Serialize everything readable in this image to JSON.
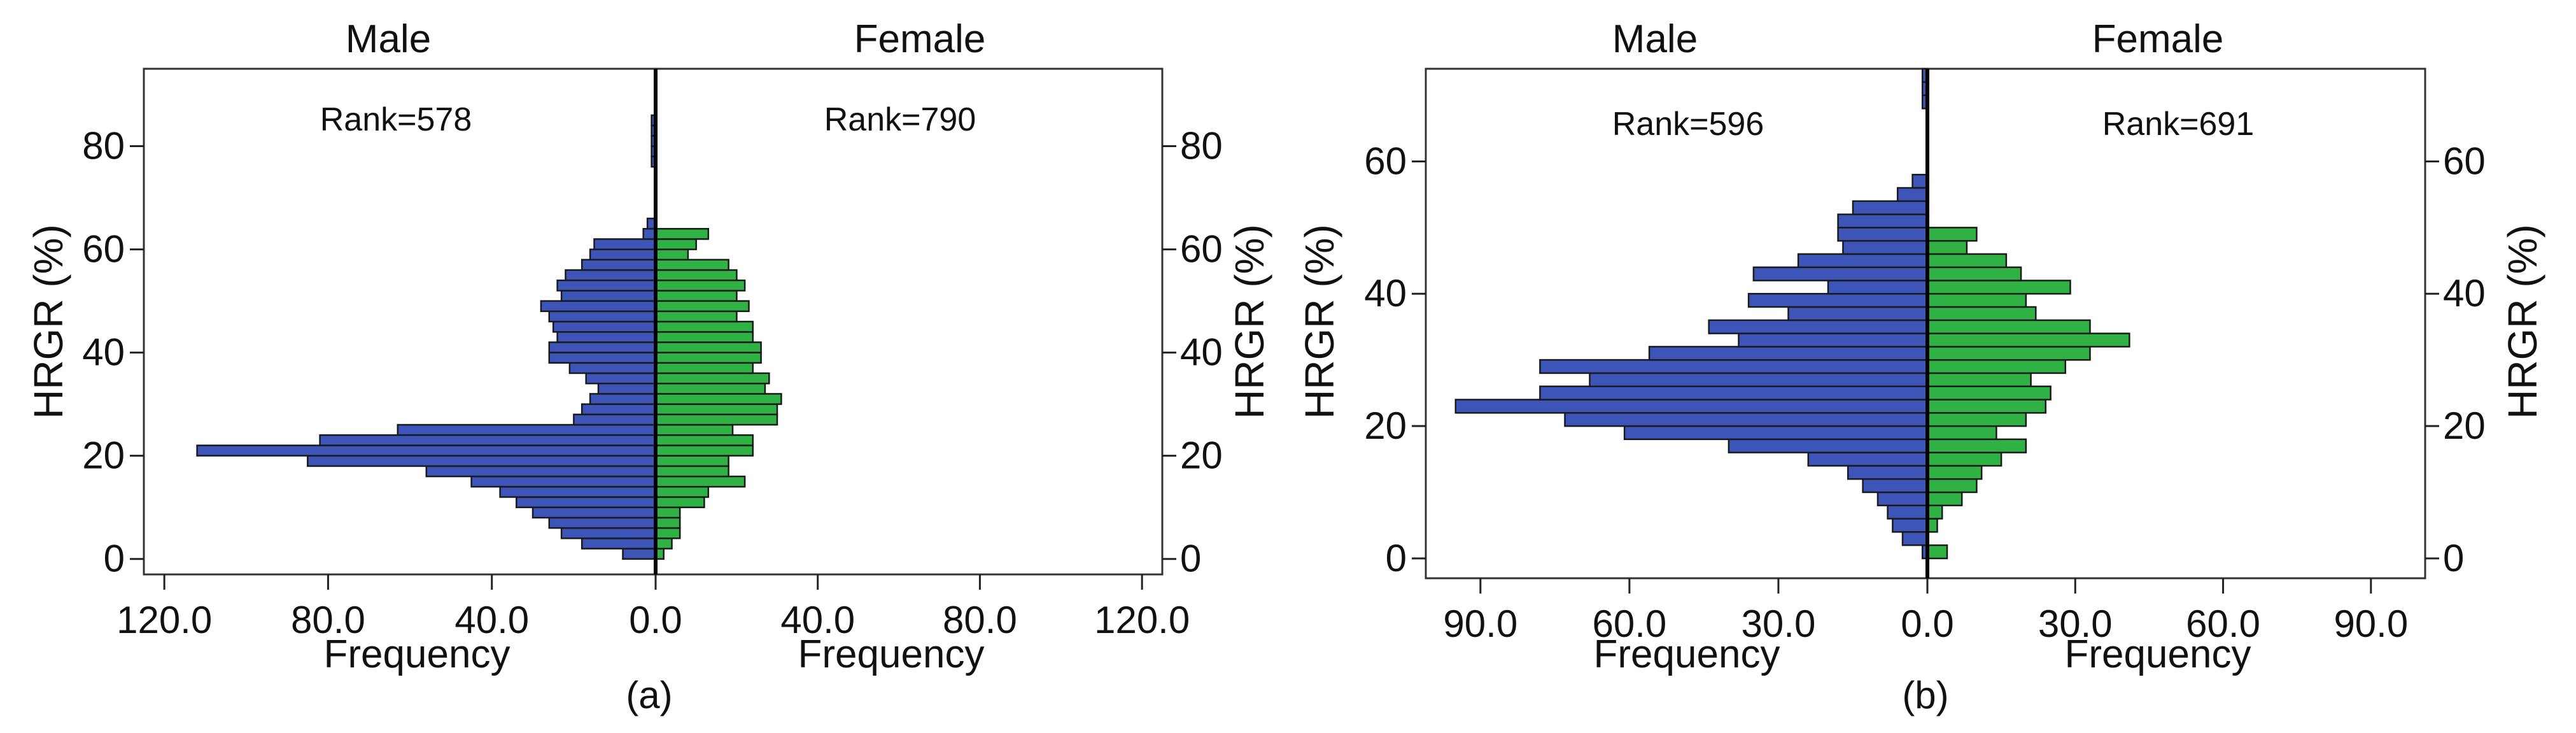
{
  "chart_data": [
    {
      "type": "bar",
      "orientation": "horizontal",
      "layout": "population-pyramid",
      "panel_label": "(a)",
      "left_title": "Male",
      "right_title": "Female",
      "xlabel_left": "Frequency",
      "xlabel_right": "Frequency",
      "ylabel_left": "HRGR (%)",
      "ylabel_right": "HRGR (%)",
      "ylim": [
        -3,
        95
      ],
      "xmax_left": 125,
      "xmax_right": 125,
      "bin_width": 2,
      "yticks": [
        0,
        20,
        40,
        60,
        80
      ],
      "ytick_labels": [
        "0",
        "20",
        "40",
        "60",
        "80"
      ],
      "xticks_left": [
        120,
        80,
        40,
        0
      ],
      "xtick_labels_left": [
        "120.0",
        "80.0",
        "40.0",
        "0.0"
      ],
      "xticks_right": [
        40,
        80,
        120
      ],
      "xtick_labels_right": [
        "40.0",
        "80.0",
        "120.0"
      ],
      "left_annotation": "Rank=578",
      "right_annotation": "Rank=790",
      "series": [
        {
          "name": "Male",
          "color": "#3d55b8",
          "bins": [
            1,
            3,
            5,
            7,
            9,
            11,
            13,
            15,
            17,
            19,
            21,
            23,
            25,
            27,
            29,
            31,
            33,
            35,
            37,
            39,
            41,
            43,
            45,
            47,
            49,
            51,
            53,
            55,
            57,
            59,
            61,
            63,
            65,
            67,
            69,
            71,
            73,
            75,
            77,
            79,
            81,
            83,
            85,
            87
          ],
          "values": [
            8,
            18,
            23,
            26,
            30,
            34,
            38,
            45,
            56,
            85,
            112,
            82,
            63,
            20,
            18,
            16,
            14,
            17,
            21,
            26,
            26,
            24,
            25,
            26,
            28,
            23,
            24,
            22,
            18,
            16,
            15,
            3,
            2,
            0,
            0,
            0,
            0,
            0,
            1,
            1,
            1,
            1,
            1,
            0
          ]
        },
        {
          "name": "Female",
          "color": "#2fb143",
          "bins": [
            1,
            3,
            5,
            7,
            9,
            11,
            13,
            15,
            17,
            19,
            21,
            23,
            25,
            27,
            29,
            31,
            33,
            35,
            37,
            39,
            41,
            43,
            45,
            47,
            49,
            51,
            53,
            55,
            57,
            59,
            61,
            63,
            65,
            67,
            69,
            71,
            73,
            75,
            77,
            79,
            81,
            83,
            85,
            87
          ],
          "values": [
            2,
            4,
            6,
            6,
            6,
            12,
            13,
            22,
            18,
            18,
            24,
            24,
            19,
            30,
            30,
            31,
            27,
            28,
            24,
            26,
            26,
            24,
            24,
            20,
            23,
            20,
            22,
            20,
            18,
            8,
            10,
            13,
            0,
            0,
            0,
            0,
            0,
            0,
            0,
            0,
            0,
            0,
            0,
            0
          ]
        }
      ]
    },
    {
      "type": "bar",
      "orientation": "horizontal",
      "layout": "population-pyramid",
      "panel_label": "(b)",
      "left_title": "Male",
      "right_title": "Female",
      "xlabel_left": "Frequency",
      "xlabel_right": "Frequency",
      "ylabel_left": "HRGR (%)",
      "ylabel_right": "HRGR (%)",
      "ylim": [
        -3,
        74
      ],
      "xmax_left": 101,
      "xmax_right": 101,
      "bin_width": 2,
      "yticks": [
        0,
        20,
        40,
        60
      ],
      "ytick_labels": [
        "0",
        "20",
        "40",
        "60"
      ],
      "xticks_left": [
        90,
        60,
        30,
        0
      ],
      "xtick_labels_left": [
        "90.0",
        "60.0",
        "30.0",
        "0.0"
      ],
      "xticks_right": [
        30,
        60,
        90
      ],
      "xtick_labels_right": [
        "30.0",
        "60.0",
        "90.0"
      ],
      "left_annotation": "Rank=596",
      "right_annotation": "Rank=691",
      "series": [
        {
          "name": "Male",
          "color": "#3d55b8",
          "bins": [
            1,
            3,
            5,
            7,
            9,
            11,
            13,
            15,
            17,
            19,
            21,
            23,
            25,
            27,
            29,
            31,
            33,
            35,
            37,
            39,
            41,
            43,
            45,
            47,
            49,
            51,
            53,
            55,
            57,
            59,
            61,
            63,
            65,
            67,
            69,
            71,
            73
          ],
          "values": [
            1,
            5,
            7,
            8,
            10,
            13,
            16,
            24,
            40,
            61,
            73,
            95,
            78,
            68,
            78,
            56,
            38,
            44,
            28,
            36,
            20,
            35,
            26,
            17,
            18,
            18,
            15,
            6,
            3,
            0,
            0,
            0,
            0,
            0,
            1,
            1,
            1
          ]
        },
        {
          "name": "Female",
          "color": "#2fb143",
          "bins": [
            1,
            3,
            5,
            7,
            9,
            11,
            13,
            15,
            17,
            19,
            21,
            23,
            25,
            27,
            29,
            31,
            33,
            35,
            37,
            39,
            41,
            43,
            45,
            47,
            49,
            51,
            53,
            55,
            57,
            59,
            61,
            63,
            65,
            67,
            69,
            71,
            73
          ],
          "values": [
            4,
            0,
            2,
            3,
            7,
            10,
            11,
            15,
            20,
            14,
            20,
            24,
            25,
            21,
            28,
            33,
            41,
            33,
            22,
            20,
            29,
            19,
            16,
            8,
            10,
            0,
            0,
            0,
            0,
            0,
            0,
            0,
            0,
            0,
            0,
            0,
            0
          ]
        }
      ]
    }
  ]
}
